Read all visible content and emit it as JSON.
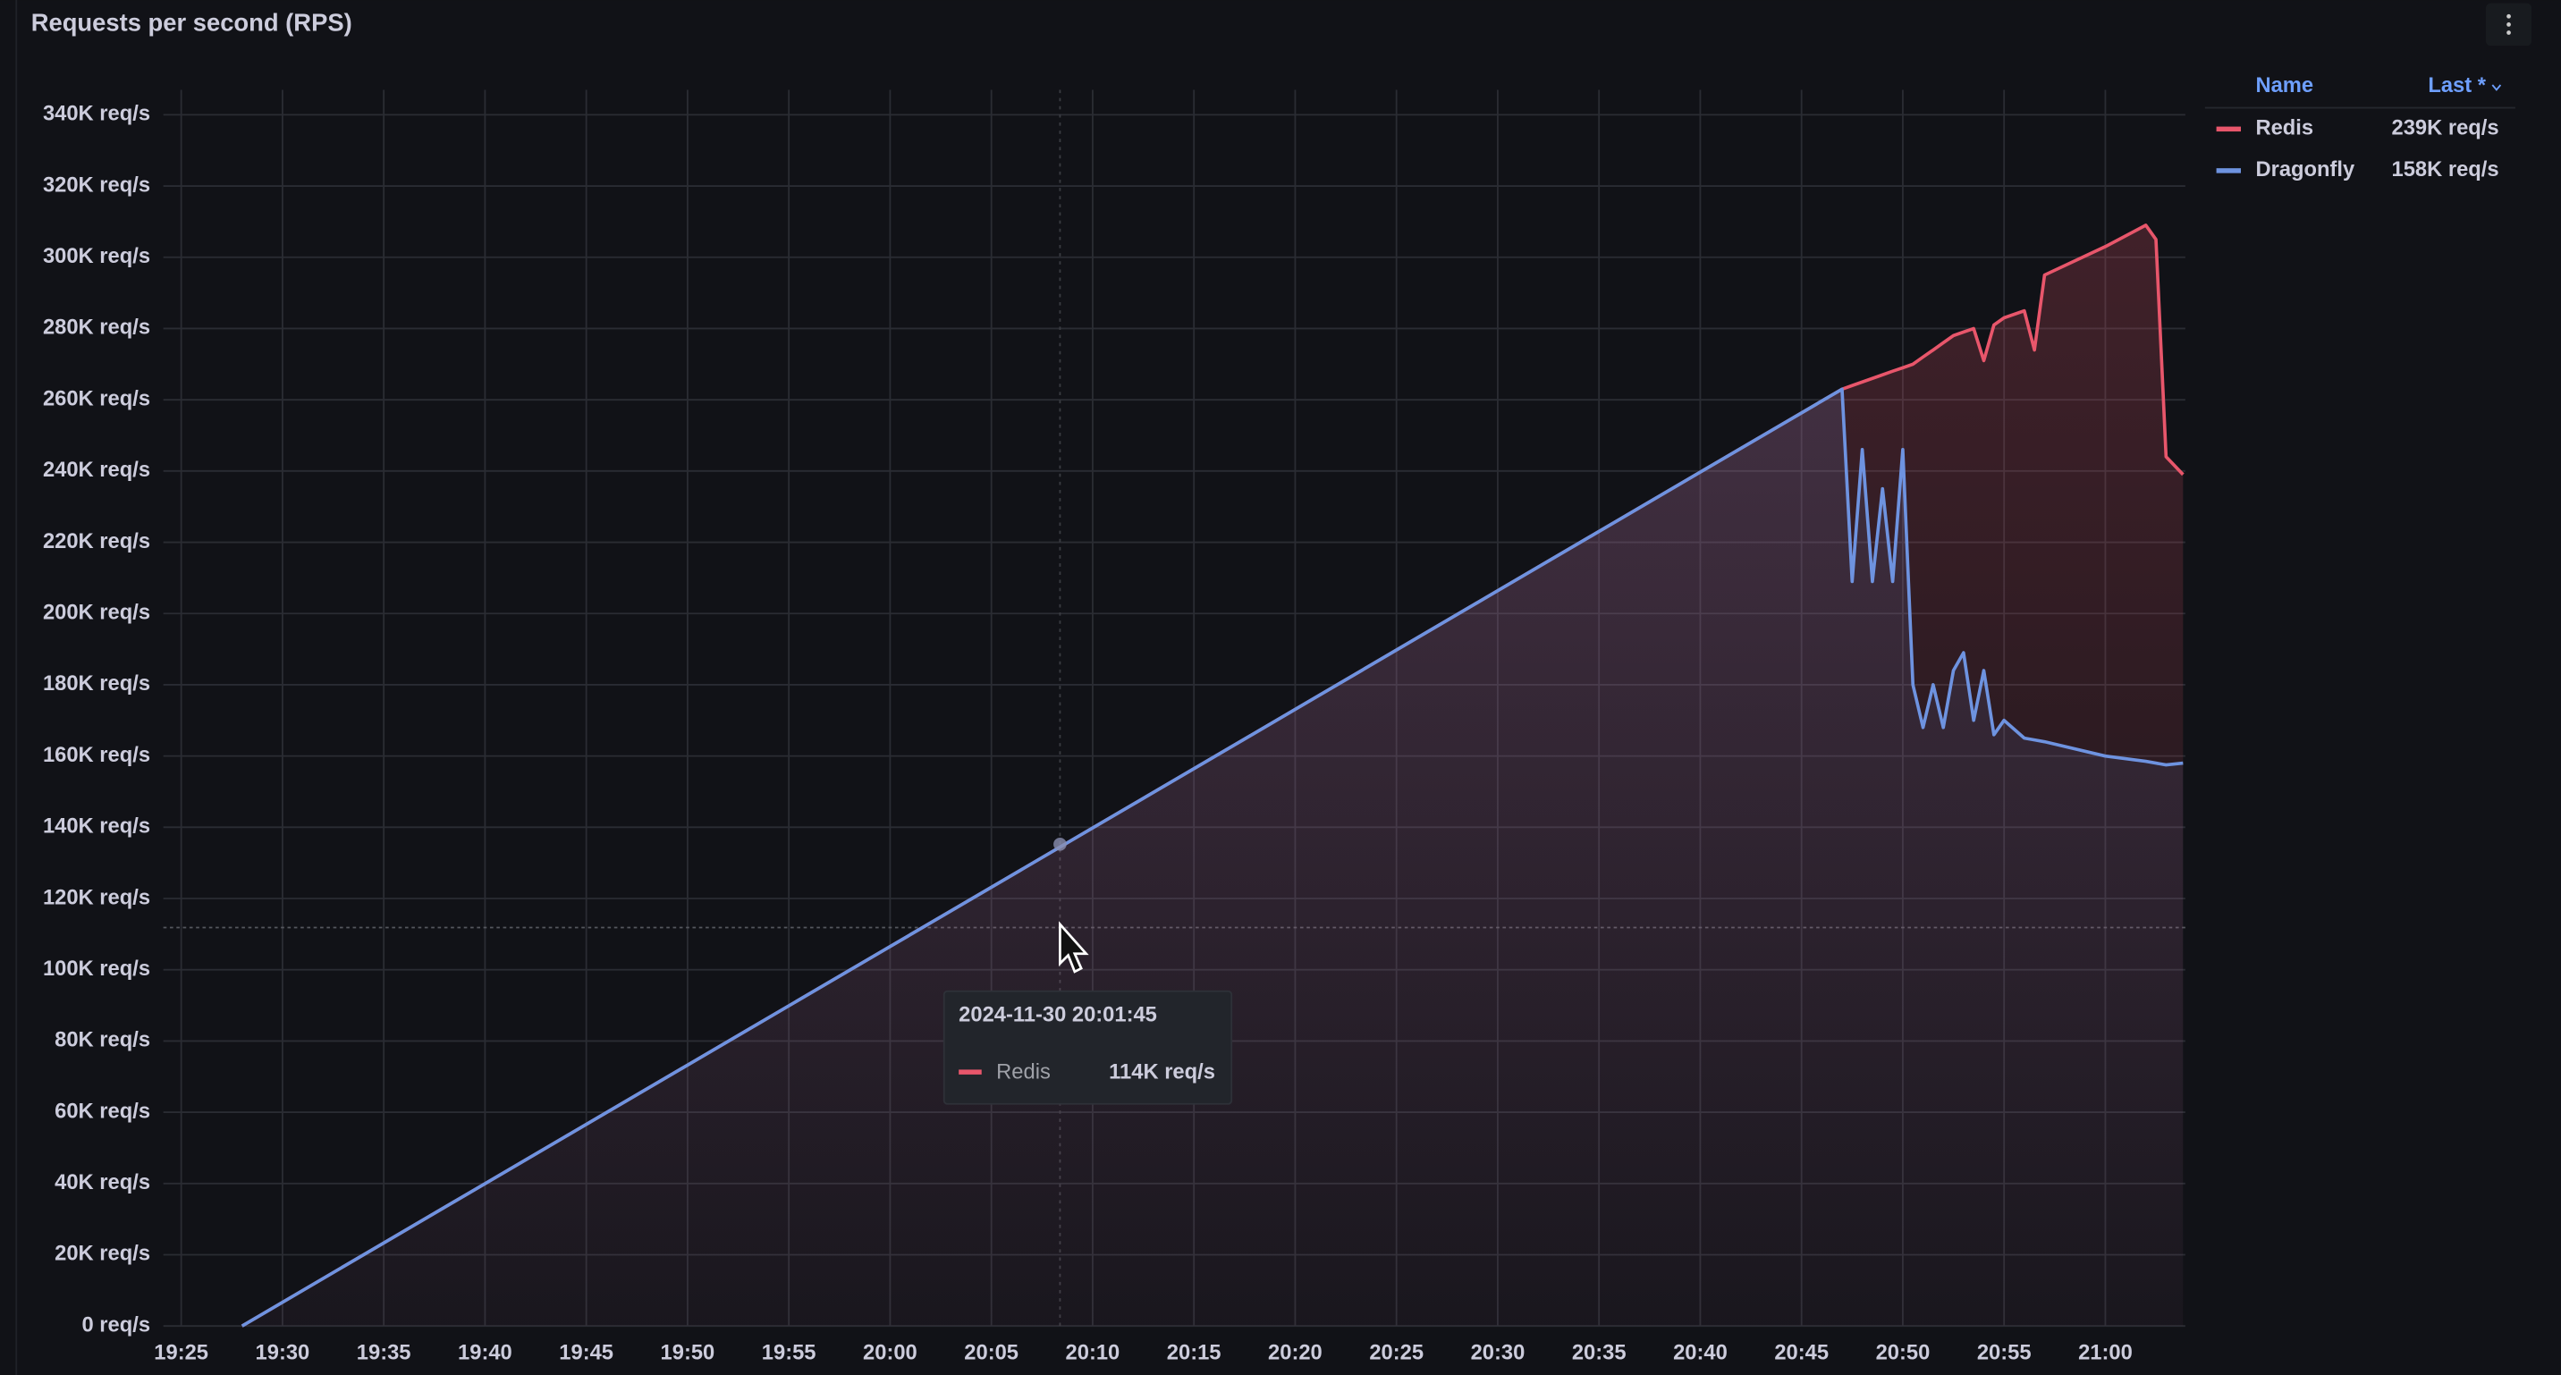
{
  "chart_data": {
    "type": "line",
    "title": "Requests per second (RPS)",
    "x": [
      "19:28:00",
      "19:40:00",
      "19:50:00",
      "20:00:00",
      "20:10:00",
      "20:20:00",
      "20:30:00",
      "20:40:00",
      "20:47:00",
      "20:47:30",
      "20:48:00",
      "20:48:30",
      "20:49:00",
      "20:49:30",
      "20:50:00",
      "20:50:30",
      "20:51:00",
      "20:51:30",
      "20:52:00",
      "20:52:30",
      "20:53:00",
      "20:53:30",
      "20:54:00",
      "20:54:30",
      "20:55:00",
      "20:56:00",
      "20:56:30",
      "20:57:00",
      "21:00:00",
      "21:02:00",
      "21:02:30",
      "21:03:00",
      "21:03:50"
    ],
    "series": [
      {
        "name": "Redis",
        "color": "#e8566b",
        "values": [
          0,
          39950,
          73240,
          106530,
          139820,
          173100,
          206390,
          239700,
          263000,
          264000,
          265000,
          266000,
          267000,
          268000,
          269000,
          270000,
          272000,
          274000,
          276000,
          278000,
          279000,
          280000,
          271000,
          281000,
          283000,
          285000,
          274000,
          295000,
          303000,
          309000,
          305000,
          244000,
          239000
        ],
        "last": {
          "value": 239000,
          "label": "239K req/s"
        }
      },
      {
        "name": "Dragonfly",
        "color": "#6e93e0",
        "values": [
          0,
          39950,
          73240,
          106530,
          139820,
          173100,
          206390,
          239700,
          263000,
          209000,
          246000,
          209000,
          235000,
          209000,
          246000,
          180000,
          168000,
          180000,
          168000,
          184000,
          189000,
          170000,
          184000,
          166000,
          170000,
          165000,
          164500,
          164000,
          160000,
          158500,
          158000,
          157500,
          158000
        ],
        "last": {
          "value": 158000,
          "label": "158K req/s"
        }
      }
    ],
    "xlim": [
      "19:24:07",
      "21:03:57"
    ],
    "xticks": [
      "19:25",
      "19:30",
      "19:35",
      "19:40",
      "19:45",
      "19:50",
      "19:55",
      "20:00",
      "20:05",
      "20:10",
      "20:15",
      "20:20",
      "20:25",
      "20:30",
      "20:35",
      "20:40",
      "20:45",
      "20:50",
      "20:55",
      "21:00"
    ],
    "ylim": [
      0,
      347000
    ],
    "yticks": [
      {
        "value": 0,
        "label": "0 req/s"
      },
      {
        "value": 20000,
        "label": "20K req/s"
      },
      {
        "value": 40000,
        "label": "40K req/s"
      },
      {
        "value": 60000,
        "label": "60K req/s"
      },
      {
        "value": 80000,
        "label": "80K req/s"
      },
      {
        "value": 100000,
        "label": "100K req/s"
      },
      {
        "value": 120000,
        "label": "120K req/s"
      },
      {
        "value": 140000,
        "label": "140K req/s"
      },
      {
        "value": 160000,
        "label": "160K req/s"
      },
      {
        "value": 180000,
        "label": "180K req/s"
      },
      {
        "value": 200000,
        "label": "200K req/s"
      },
      {
        "value": 220000,
        "label": "220K req/s"
      },
      {
        "value": 240000,
        "label": "240K req/s"
      },
      {
        "value": 260000,
        "label": "260K req/s"
      },
      {
        "value": 280000,
        "label": "280K req/s"
      },
      {
        "value": 300000,
        "label": "300K req/s"
      },
      {
        "value": 320000,
        "label": "320K req/s"
      },
      {
        "value": 340000,
        "label": "340K req/s"
      }
    ],
    "grid": true,
    "legend": {
      "position": "right",
      "columns": [
        "Name",
        "Last *"
      ]
    },
    "tooltip": {
      "time": "2024-11-30 20:01:45",
      "series": "Redis",
      "value": 114000,
      "label": "114K req/s"
    }
  }
}
